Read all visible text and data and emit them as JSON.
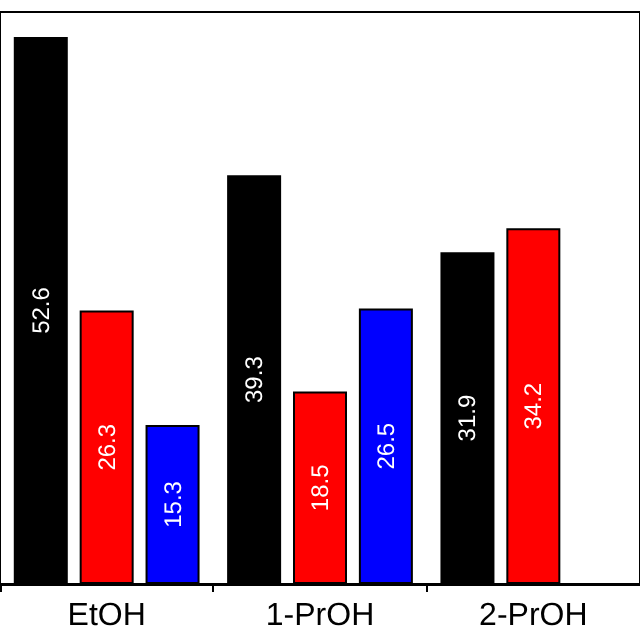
{
  "chart_data": {
    "type": "bar",
    "categories": [
      "EtOH",
      "1-PrOH",
      "2-PrOH"
    ],
    "series": [
      {
        "color": "#000000",
        "values": [
          52.6,
          39.3,
          31.9
        ]
      },
      {
        "color": "#ff0000",
        "values": [
          26.3,
          18.5,
          34.2
        ]
      },
      {
        "color": "#0000ff",
        "values": [
          15.3,
          26.5,
          null
        ]
      }
    ],
    "ylim": [
      0,
      55
    ],
    "tick_labels": "x",
    "data_labels": true,
    "grid": false
  }
}
